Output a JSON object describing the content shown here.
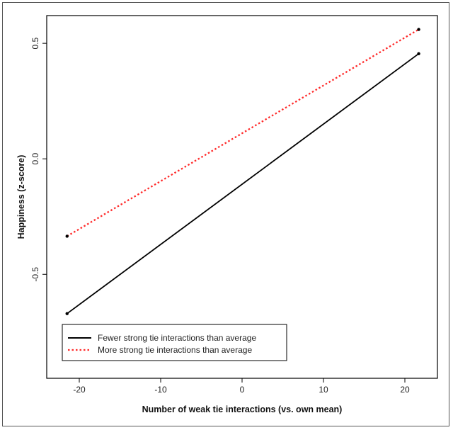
{
  "chart_data": {
    "type": "line",
    "title": "",
    "xlabel": "Number of weak tie interactions (vs. own mean)",
    "ylabel": "Happiness (z-score)",
    "xlim": [
      -24,
      24
    ],
    "ylim": [
      -0.95,
      0.62
    ],
    "xticks": [
      -20,
      -10,
      0,
      10,
      20
    ],
    "xtick_labels": [
      "-20",
      "-10",
      "0",
      "10",
      "20"
    ],
    "yticks": [
      -0.5,
      0.0,
      0.5
    ],
    "ytick_labels": [
      "-0.5",
      "0.0",
      "0.5"
    ],
    "grid": false,
    "legend_position": "bottom-left",
    "series": [
      {
        "name": "Fewer strong tie interactions than average",
        "color": "#000000",
        "style": "solid",
        "x": [
          -21.5,
          21.7
        ],
        "y": [
          -0.67,
          0.455
        ]
      },
      {
        "name": "More strong tie interactions than average",
        "color": "#ff2a2a",
        "style": "dotted",
        "x": [
          -21.5,
          21.7
        ],
        "y": [
          -0.335,
          0.56
        ]
      }
    ]
  }
}
